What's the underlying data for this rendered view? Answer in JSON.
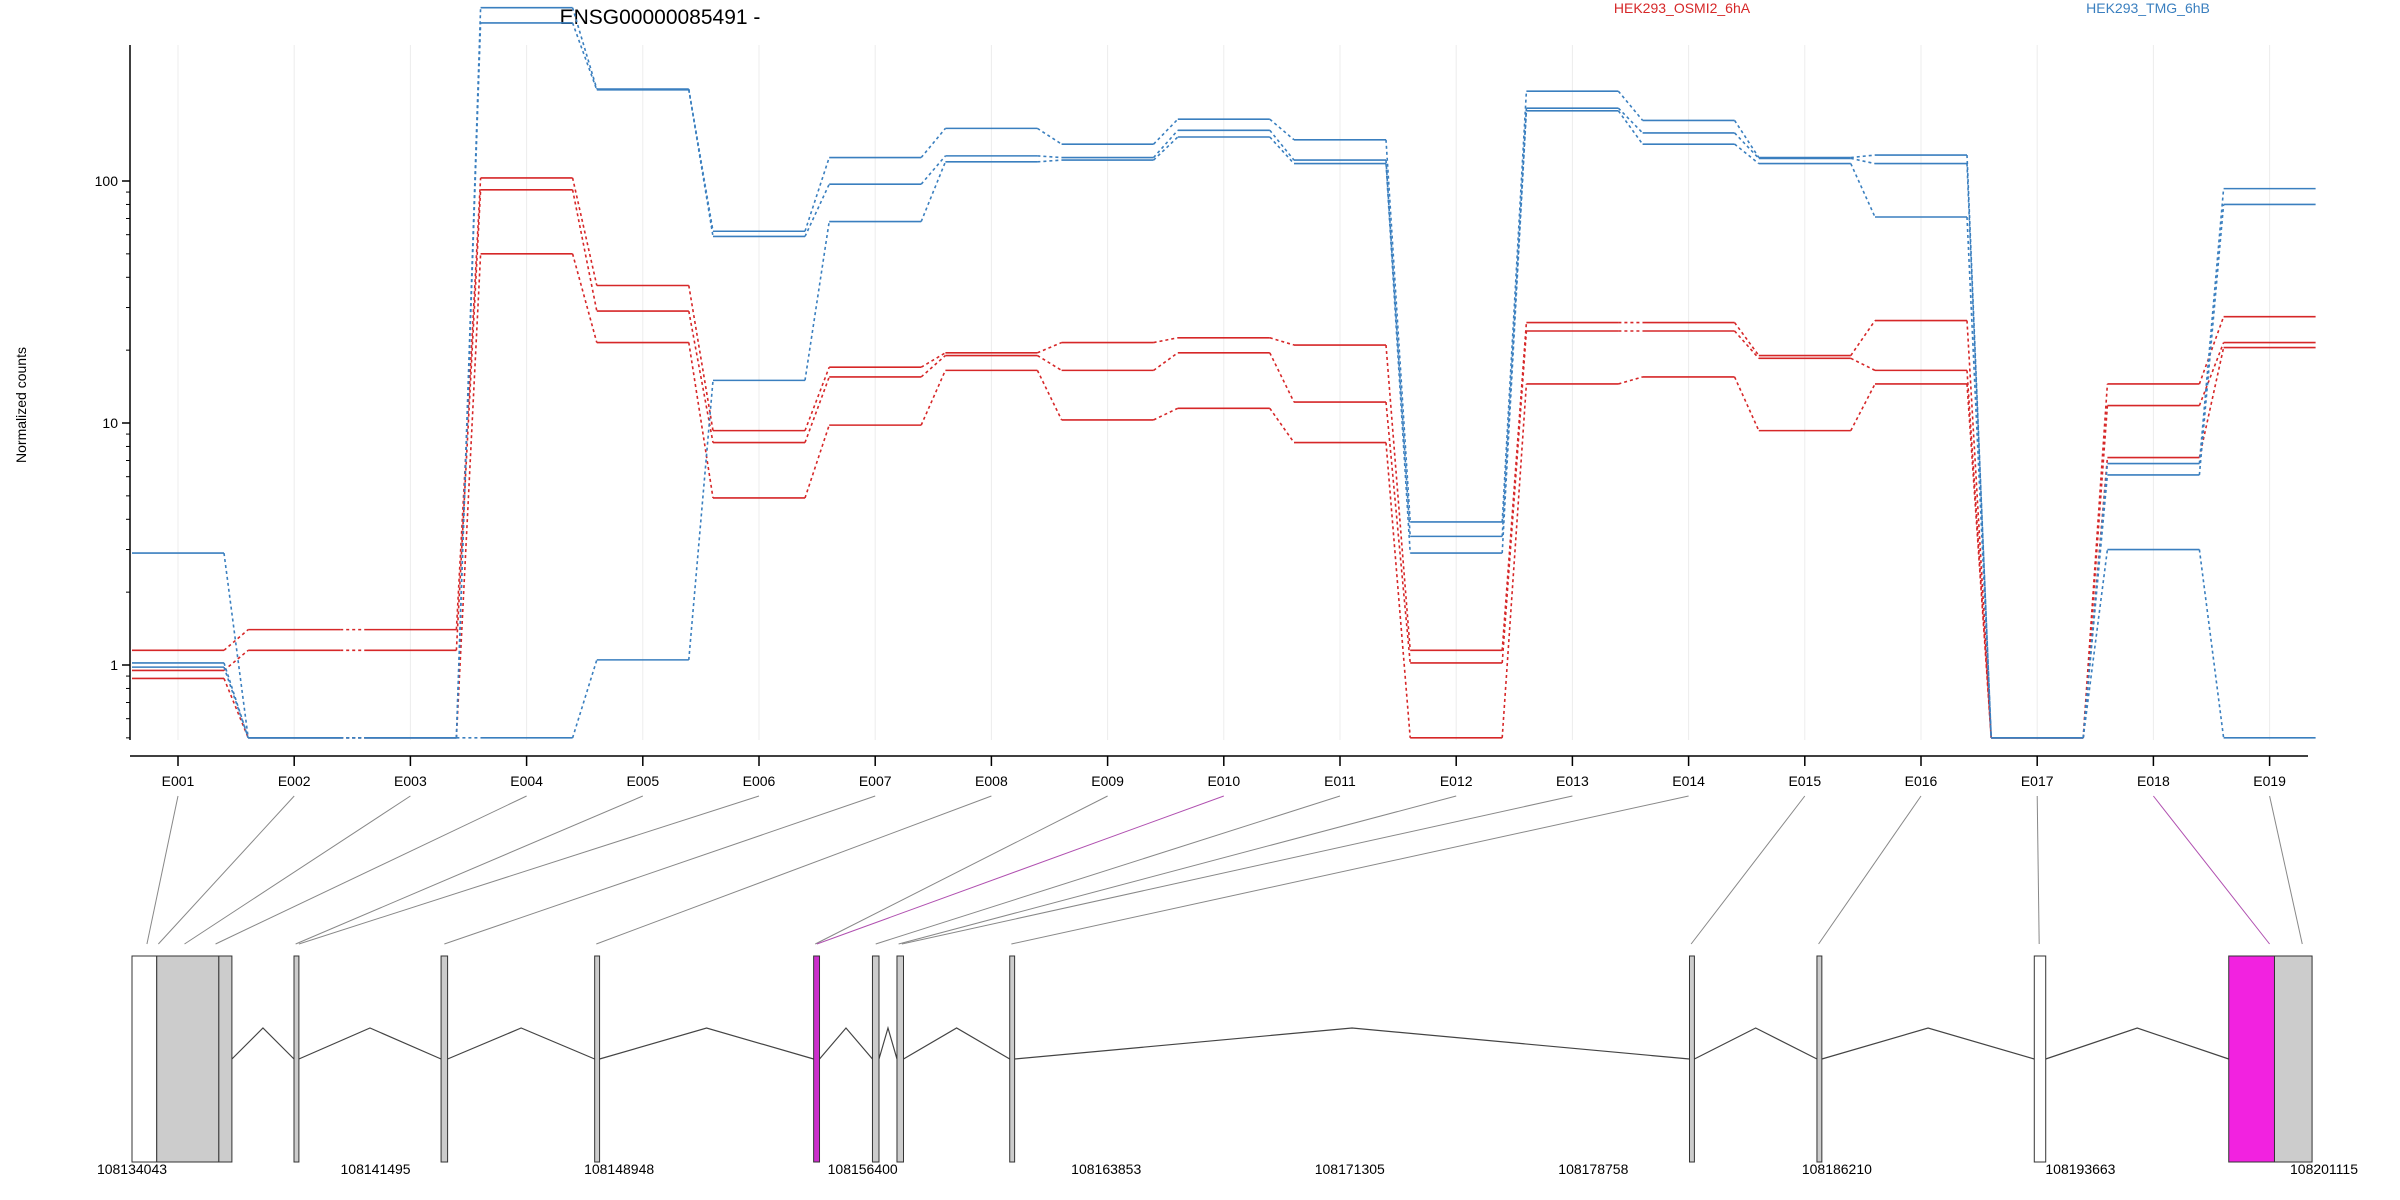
{
  "chart_data": {
    "type": "line",
    "title": "ENSG00000085491 -",
    "ylabel": "Normalized counts",
    "yscale": "log",
    "ylim": [
      0.5,
      700
    ],
    "yticks": [
      1,
      10,
      100
    ],
    "ytick_labels": [
      "1",
      "10",
      "100"
    ],
    "grid": "vertical",
    "legend_position": "top",
    "categories": [
      "E001",
      "E002",
      "E003",
      "E004",
      "E005",
      "E006",
      "E007",
      "E008",
      "E009",
      "E010",
      "E011",
      "E012",
      "E013",
      "E014",
      "E015",
      "E016",
      "E017",
      "E018",
      "E019"
    ],
    "series": [
      {
        "name": "HEK293_OSMI2_6hA",
        "color": "#d62728",
        "values": [
          1.15,
          1.4,
          1.4,
          103,
          37,
          9.3,
          17,
          19.5,
          21.5,
          22.5,
          21,
          1.15,
          26,
          26,
          19,
          26.5,
          0.5,
          14.5,
          27.5
        ]
      },
      {
        "name": "HEK293_OSMI2_6hA",
        "color": "#d62728",
        "values": [
          0.95,
          1.15,
          1.15,
          92,
          29,
          8.3,
          15.5,
          19,
          16.5,
          19.5,
          12.2,
          1.02,
          24,
          24,
          18.5,
          16.5,
          0.5,
          11.8,
          21.5
        ]
      },
      {
        "name": "HEK293_OSMI2_6hA",
        "color": "#d62728",
        "values": [
          0.88,
          0.5,
          0.5,
          50,
          21.5,
          4.9,
          9.8,
          16.5,
          10.3,
          11.5,
          8.3,
          0.5,
          14.5,
          15.5,
          9.3,
          14.5,
          0.5,
          7.2,
          20.5
        ]
      },
      {
        "name": "HEK293_TMG_6hB",
        "color": "#3a7fbf",
        "values": [
          2.9,
          0.5,
          0.5,
          520,
          240,
          62,
          125,
          165,
          142,
          180,
          148,
          3.9,
          235,
          178,
          125,
          128,
          0.5,
          6.8,
          93
        ]
      },
      {
        "name": "HEK293_TMG_6hB",
        "color": "#3a7fbf",
        "values": [
          1.02,
          0.5,
          0.5,
          450,
          238,
          59,
          97,
          127,
          125,
          162,
          122,
          3.4,
          200,
          158,
          124,
          118,
          0.5,
          6.1,
          80
        ]
      },
      {
        "name": "HEK293_TMG_6hB",
        "color": "#3a7fbf",
        "values": [
          0.98,
          0.5,
          0.5,
          0.5,
          1.05,
          15,
          68,
          120,
          122,
          152,
          118,
          2.9,
          195,
          142,
          118,
          71,
          0.5,
          3.0,
          0.5
        ]
      }
    ],
    "gene_model": {
      "coordinate_labels": [
        "108134043",
        "108141495",
        "108148948",
        "108156400",
        "108163853",
        "108171305",
        "108178758",
        "108186210",
        "108193663",
        "108201115"
      ],
      "range": [
        108134043,
        108201115
      ],
      "exons": [
        {
          "start": 108134043,
          "end": 108134800,
          "fill": "#ffffff"
        },
        {
          "start": 108134800,
          "end": 108136700,
          "fill": "#cccccc"
        },
        {
          "start": 108136700,
          "end": 108137100,
          "fill": "#cccccc"
        },
        {
          "start": 108139000,
          "end": 108139150,
          "fill": "#cccccc"
        },
        {
          "start": 108143500,
          "end": 108143700,
          "fill": "#cccccc"
        },
        {
          "start": 108148200,
          "end": 108148350,
          "fill": "#cccccc"
        },
        {
          "start": 108154900,
          "end": 108155080,
          "fill": "#cc2fcc"
        },
        {
          "start": 108156700,
          "end": 108156900,
          "fill": "#cccccc"
        },
        {
          "start": 108157450,
          "end": 108157650,
          "fill": "#cccccc"
        },
        {
          "start": 108160900,
          "end": 108161050,
          "fill": "#cccccc"
        },
        {
          "start": 108181700,
          "end": 108181850,
          "fill": "#cccccc"
        },
        {
          "start": 108185600,
          "end": 108185750,
          "fill": "#cccccc"
        },
        {
          "start": 108192250,
          "end": 108192600,
          "fill": "#ffffff"
        },
        {
          "start": 108198200,
          "end": 108199600,
          "fill": "#f222e0"
        },
        {
          "start": 108199600,
          "end": 108200750,
          "fill": "#cccccc"
        }
      ],
      "links": [
        {
          "bin": "E001",
          "pos": 108134500,
          "color": "#888888"
        },
        {
          "bin": "E002",
          "pos": 108134850,
          "color": "#888888"
        },
        {
          "bin": "E003",
          "pos": 108135650,
          "color": "#888888"
        },
        {
          "bin": "E004",
          "pos": 108136600,
          "color": "#888888"
        },
        {
          "bin": "E005",
          "pos": 108139050,
          "color": "#888888"
        },
        {
          "bin": "E006",
          "pos": 108139150,
          "color": "#888888"
        },
        {
          "bin": "E007",
          "pos": 108143600,
          "color": "#888888"
        },
        {
          "bin": "E008",
          "pos": 108148250,
          "color": "#888888"
        },
        {
          "bin": "E009",
          "pos": 108154950,
          "color": "#888888"
        },
        {
          "bin": "E010",
          "pos": 108155000,
          "color": "#b050b0"
        },
        {
          "bin": "E011",
          "pos": 108156800,
          "color": "#888888"
        },
        {
          "bin": "E012",
          "pos": 108157500,
          "color": "#888888"
        },
        {
          "bin": "E013",
          "pos": 108157600,
          "color": "#888888"
        },
        {
          "bin": "E014",
          "pos": 108160950,
          "color": "#888888"
        },
        {
          "bin": "E015",
          "pos": 108181750,
          "color": "#888888"
        },
        {
          "bin": "E016",
          "pos": 108185650,
          "color": "#888888"
        },
        {
          "bin": "E017",
          "pos": 108192400,
          "color": "#888888"
        },
        {
          "bin": "E018",
          "pos": 108199450,
          "color": "#b050b0"
        },
        {
          "bin": "E019",
          "pos": 108200450,
          "color": "#888888"
        }
      ],
      "introns": [
        [
          108137100,
          108139000
        ],
        [
          108139150,
          108143500
        ],
        [
          108143700,
          108148200
        ],
        [
          108148350,
          108154900
        ],
        [
          108155080,
          108156700
        ],
        [
          108156900,
          108157450
        ],
        [
          108157650,
          108160900
        ],
        [
          108161050,
          108181700
        ],
        [
          108181850,
          108185600
        ],
        [
          108185750,
          108192250
        ],
        [
          108192600,
          108198200
        ]
      ]
    }
  },
  "legend": [
    {
      "label": "HEK293_OSMI2_6hA",
      "color": "#d62728"
    },
    {
      "label": "HEK293_TMG_6hB",
      "color": "#3a7fbf"
    }
  ]
}
